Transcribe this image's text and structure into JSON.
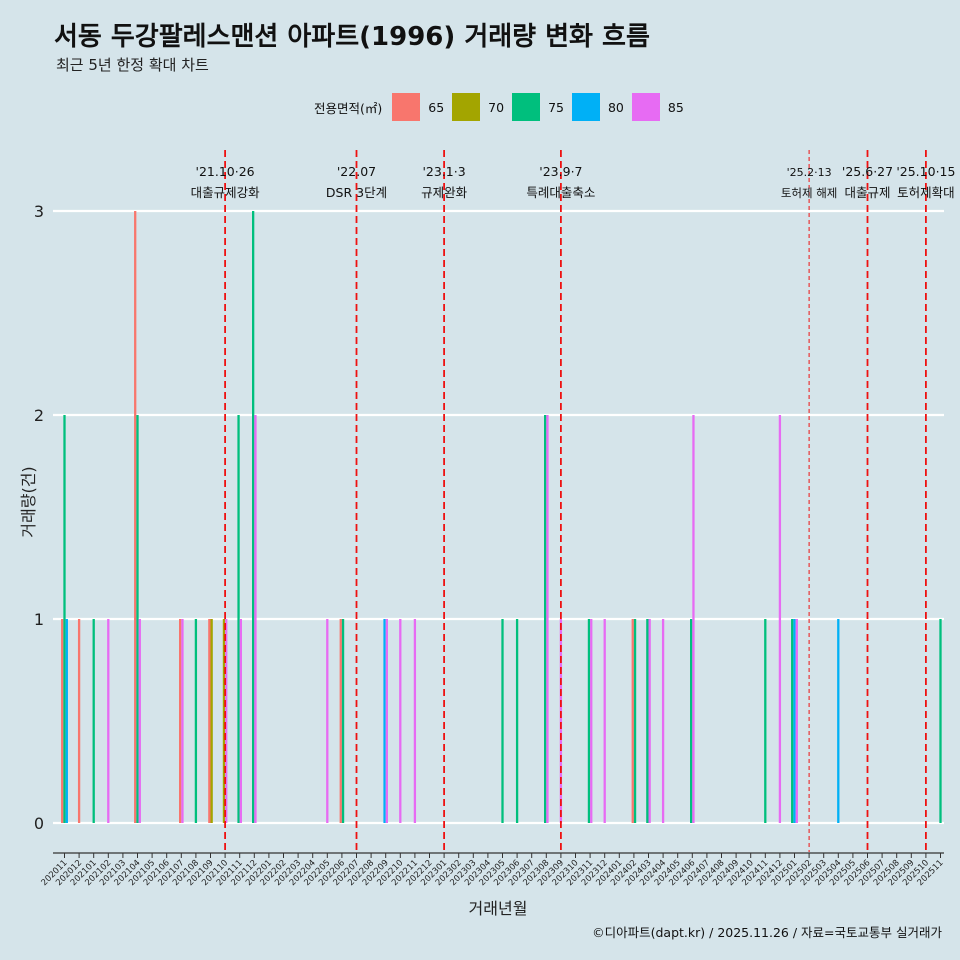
{
  "title": "서동 두강팔레스맨션 아파트(1996) 거래량 변화 흐름",
  "subtitle": "최근 5년 한정 확대 차트",
  "caption": "©디아파트(dapt.kr) / 2025.11.26 / 자료=국토교통부 실거래가",
  "legend": {
    "title": "전용면적(㎡)",
    "items": [
      {
        "label": "65",
        "color": "#f8766d"
      },
      {
        "label": "70",
        "color": "#a3a500"
      },
      {
        "label": "75",
        "color": "#00bf7d"
      },
      {
        "label": "80",
        "color": "#00b0f6"
      },
      {
        "label": "85",
        "color": "#e76bf3"
      }
    ]
  },
  "chart_data": {
    "type": "bar",
    "xlabel": "거래년월",
    "ylabel": "거래량(건)",
    "ylim": [
      0,
      3
    ],
    "yticks": [
      0,
      1,
      2,
      3
    ],
    "categories": [
      "202011",
      "202012",
      "202101",
      "202102",
      "202103",
      "202104",
      "202105",
      "202106",
      "202107",
      "202108",
      "202109",
      "202110",
      "202111",
      "202112",
      "202201",
      "202202",
      "202203",
      "202204",
      "202205",
      "202206",
      "202207",
      "202208",
      "202209",
      "202210",
      "202211",
      "202212",
      "202301",
      "202302",
      "202303",
      "202304",
      "202305",
      "202306",
      "202307",
      "202308",
      "202309",
      "202310",
      "202311",
      "202312",
      "202401",
      "202402",
      "202403",
      "202404",
      "202405",
      "202406",
      "202407",
      "202408",
      "202409",
      "202410",
      "202411",
      "202412",
      "202501",
      "202502",
      "202503",
      "202504",
      "202505",
      "202506",
      "202507",
      "202508",
      "202509",
      "202510",
      "202511"
    ],
    "series": [
      {
        "name": "65",
        "color": "#f8766d",
        "points": [
          {
            "x": "202011",
            "y": 1
          },
          {
            "x": "202012",
            "y": 1
          },
          {
            "x": "202104",
            "y": 3
          },
          {
            "x": "202107",
            "y": 1
          },
          {
            "x": "202109",
            "y": 1
          },
          {
            "x": "202206",
            "y": 1
          },
          {
            "x": "202402",
            "y": 1
          }
        ]
      },
      {
        "name": "70",
        "color": "#a3a500",
        "points": [
          {
            "x": "202109",
            "y": 1
          },
          {
            "x": "202110",
            "y": 1
          }
        ]
      },
      {
        "name": "75",
        "color": "#00bf7d",
        "points": [
          {
            "x": "202011",
            "y": 2
          },
          {
            "x": "202101",
            "y": 1
          },
          {
            "x": "202104",
            "y": 2
          },
          {
            "x": "202108",
            "y": 1
          },
          {
            "x": "202111",
            "y": 2
          },
          {
            "x": "202112",
            "y": 3
          },
          {
            "x": "202206",
            "y": 1
          },
          {
            "x": "202305",
            "y": 1
          },
          {
            "x": "202306",
            "y": 1
          },
          {
            "x": "202308",
            "y": 2
          },
          {
            "x": "202311",
            "y": 1
          },
          {
            "x": "202402",
            "y": 1
          },
          {
            "x": "202403",
            "y": 1
          },
          {
            "x": "202406",
            "y": 1
          },
          {
            "x": "202411",
            "y": 1
          },
          {
            "x": "202501",
            "y": 1
          },
          {
            "x": "202511",
            "y": 1
          }
        ]
      },
      {
        "name": "80",
        "color": "#00b0f6",
        "points": [
          {
            "x": "202011",
            "y": 1
          },
          {
            "x": "202209",
            "y": 1
          },
          {
            "x": "202501",
            "y": 1
          },
          {
            "x": "202504",
            "y": 1
          }
        ]
      },
      {
        "name": "85",
        "color": "#e76bf3",
        "points": [
          {
            "x": "202102",
            "y": 1
          },
          {
            "x": "202104",
            "y": 1
          },
          {
            "x": "202107",
            "y": 1
          },
          {
            "x": "202110",
            "y": 1
          },
          {
            "x": "202111",
            "y": 1
          },
          {
            "x": "202112",
            "y": 2
          },
          {
            "x": "202205",
            "y": 1
          },
          {
            "x": "202209",
            "y": 1
          },
          {
            "x": "202210",
            "y": 1
          },
          {
            "x": "202211",
            "y": 1
          },
          {
            "x": "202308",
            "y": 2
          },
          {
            "x": "202309",
            "y": 1
          },
          {
            "x": "202311",
            "y": 1
          },
          {
            "x": "202312",
            "y": 1
          },
          {
            "x": "202403",
            "y": 1
          },
          {
            "x": "202404",
            "y": 1
          },
          {
            "x": "202406",
            "y": 2
          },
          {
            "x": "202412",
            "y": 2
          },
          {
            "x": "202501",
            "y": 1
          }
        ]
      }
    ],
    "annotations": [
      {
        "x": "202110",
        "date": "'21.10·26",
        "text": "대출규제강화",
        "style": "dashed"
      },
      {
        "x": "202207",
        "date": "'22.07",
        "text": "DSR 3단계",
        "style": "dashed"
      },
      {
        "x": "202301",
        "date": "'23.1·3",
        "text": "규제완화",
        "style": "dashed"
      },
      {
        "x": "202309",
        "date": "'23.9·7",
        "text": "특례대출축소",
        "style": "dashed"
      },
      {
        "x": "202502",
        "date": "'25.2·13",
        "text": "토허제 해제",
        "style": "dashed-thin"
      },
      {
        "x": "202506",
        "date": "'25.6·27",
        "text": "대출규제",
        "style": "dashed"
      },
      {
        "x": "202510",
        "date": "'25.10·15",
        "text": "토허제확대",
        "style": "dashed"
      }
    ]
  }
}
